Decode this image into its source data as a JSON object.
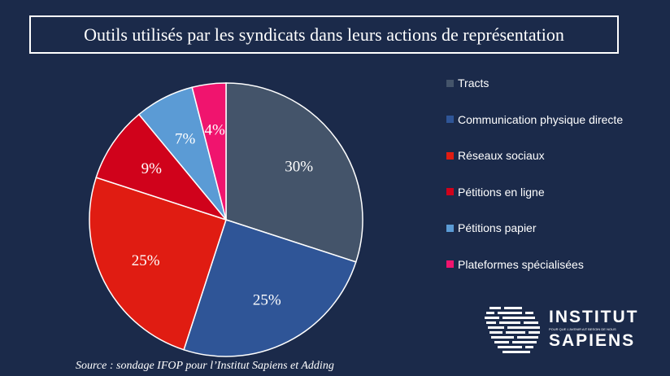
{
  "chart_data": {
    "type": "pie",
    "title": "Outils utilisés par les syndicats dans leurs actions de représentation",
    "slices": [
      {
        "label": "Tracts",
        "value": 30,
        "display": "30%",
        "color": "#44546a"
      },
      {
        "label": "Communication physique directe",
        "value": 25,
        "display": "25%",
        "color": "#2f5597"
      },
      {
        "label": "Réseaux sociaux",
        "value": 25,
        "display": "25%",
        "color": "#e01c12"
      },
      {
        "label": "Pétitions en ligne",
        "value": 9,
        "display": "9%",
        "color": "#d0021b"
      },
      {
        "label": "Pétitions papier",
        "value": 7,
        "display": "7%",
        "color": "#5b9bd5"
      },
      {
        "label": "Plateformes spécialisées",
        "value": 4,
        "display": "4%",
        "color": "#f0146e"
      }
    ],
    "legend_position": "right",
    "source": "Source : sondage IFOP pour l’Institut Sapiens et Adding"
  },
  "logo": {
    "line1": "INSTITUT",
    "line2": "SAPIENS",
    "tagline": "POUR QUE L'AVENIR AIT BESOIN DE NOUS"
  }
}
